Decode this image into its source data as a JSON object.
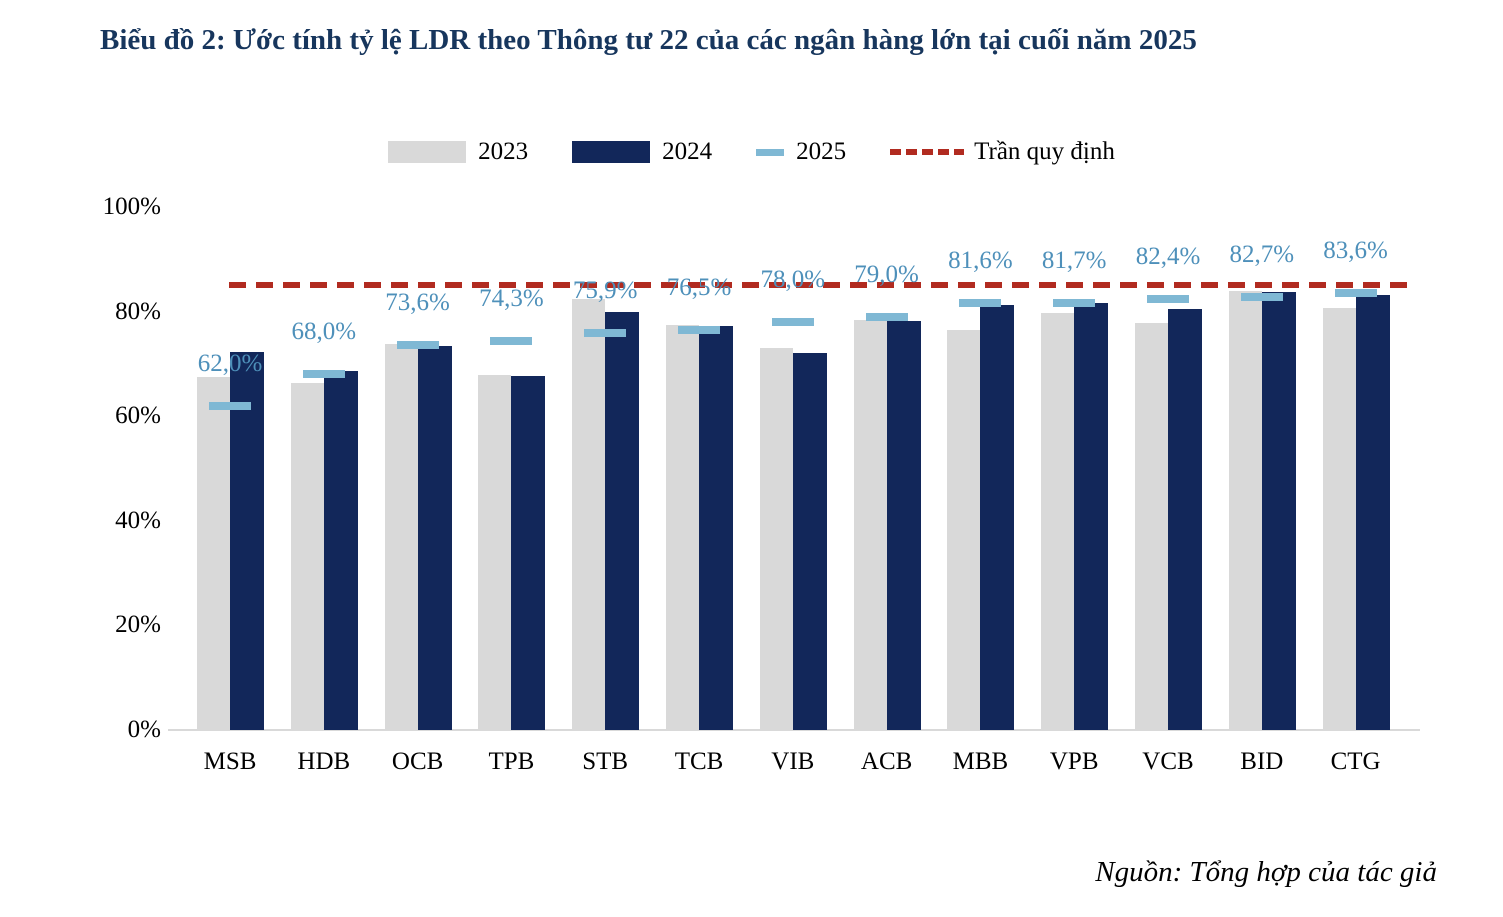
{
  "title": "Biểu đồ 2: Ước tính tỷ lệ LDR theo Thông tư 22 của các ngân hàng lớn tại cuối năm 2025",
  "source": "Nguồn: Tổng hợp của tác giả",
  "colors": {
    "series_2023": "#D9D9D9",
    "series_2024": "#12275A",
    "series_2025": "#7FB8D4",
    "value_label": "#4E90BA",
    "ceiling": "#B12B20",
    "title": "#17365D",
    "baseline": "#D9D9D9"
  },
  "chart_data": {
    "type": "bar",
    "title": "Biểu đồ 2: Ước tính tỷ lệ LDR theo Thông tư 22 của các ngân hàng lớn tại cuối năm 2025",
    "categories": [
      "MSB",
      "HDB",
      "OCB",
      "TPB",
      "STB",
      "TCB",
      "VIB",
      "ACB",
      "MBB",
      "VPB",
      "VCB",
      "BID",
      "CTG"
    ],
    "series": [
      {
        "name": "2023",
        "marker": "bar",
        "color": "#D9D9D9",
        "values": [
          67.5,
          66.3,
          73.8,
          67.9,
          82.5,
          77.4,
          73.0,
          78.3,
          76.5,
          79.7,
          77.9,
          84.0,
          80.6
        ]
      },
      {
        "name": "2024",
        "marker": "bar",
        "color": "#12275A",
        "values": [
          72.3,
          68.6,
          73.5,
          67.7,
          80.0,
          77.2,
          72.0,
          78.2,
          81.3,
          81.6,
          80.5,
          83.8,
          83.2
        ]
      },
      {
        "name": "2025",
        "marker": "dash",
        "color": "#7FB8D4",
        "values": [
          62.0,
          68.0,
          73.6,
          74.3,
          75.9,
          76.5,
          78.0,
          79.0,
          81.6,
          81.7,
          82.4,
          82.7,
          83.6
        ],
        "labels": [
          "62,0%",
          "68,0%",
          "73,6%",
          "74,3%",
          "75,9%",
          "76,5%",
          "78,0%",
          "79,0%",
          "81,6%",
          "81,7%",
          "82,4%",
          "82,7%",
          "83,6%"
        ]
      }
    ],
    "ceiling": {
      "name": "Trần quy định",
      "value": 85,
      "color": "#B12B20"
    },
    "ylim": [
      0,
      100
    ],
    "yticks": [
      {
        "label": "0%",
        "value": 0
      },
      {
        "label": "20%",
        "value": 20
      },
      {
        "label": "40%",
        "value": 40
      },
      {
        "label": "60%",
        "value": 60
      },
      {
        "label": "80%",
        "value": 80
      },
      {
        "label": "100%",
        "value": 100
      }
    ],
    "legend_position": "top",
    "grid": false,
    "source": "Nguồn: Tổng hợp của tác giả"
  }
}
